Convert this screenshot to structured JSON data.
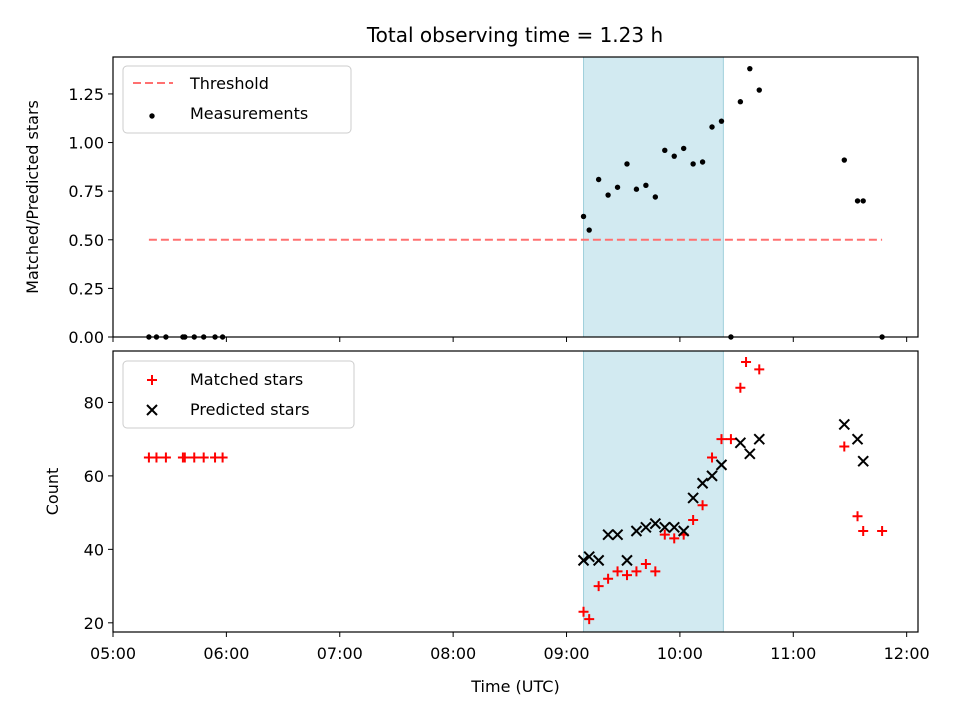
{
  "chart_data": [
    {
      "type": "scatter",
      "title": "Total observing time = 1.23 h",
      "ylabel": "Matched/Predicted stars",
      "ylim": [
        0,
        1.44
      ],
      "yticks": [
        "0.00",
        "0.25",
        "0.50",
        "0.75",
        "1.00",
        "1.25"
      ],
      "highlight_span": [
        "09:09",
        "10:23"
      ],
      "colors": {
        "threshold": "#ff7070",
        "measurements": "#000000",
        "span": "#add8e6"
      },
      "threshold": {
        "name": "Threshold",
        "value": 0.5,
        "x_range": [
          "05:19",
          "11:47"
        ]
      },
      "series": [
        {
          "name": "Measurements",
          "points": [
            [
              "05:19",
              0.0
            ],
            [
              "05:23",
              0.0
            ],
            [
              "05:28",
              0.0
            ],
            [
              "05:37",
              0.0
            ],
            [
              "05:38",
              0.0
            ],
            [
              "05:43",
              0.0
            ],
            [
              "05:48",
              0.0
            ],
            [
              "05:54",
              0.0
            ],
            [
              "05:58",
              0.0
            ],
            [
              "09:09",
              0.62
            ],
            [
              "09:12",
              0.55
            ],
            [
              "09:17",
              0.81
            ],
            [
              "09:22",
              0.73
            ],
            [
              "09:27",
              0.77
            ],
            [
              "09:32",
              0.89
            ],
            [
              "09:37",
              0.76
            ],
            [
              "09:42",
              0.78
            ],
            [
              "09:47",
              0.72
            ],
            [
              "09:52",
              0.96
            ],
            [
              "09:57",
              0.93
            ],
            [
              "10:02",
              0.97
            ],
            [
              "10:07",
              0.89
            ],
            [
              "10:12",
              0.9
            ],
            [
              "10:17",
              1.08
            ],
            [
              "10:22",
              1.11
            ],
            [
              "10:27",
              0.0
            ],
            [
              "10:32",
              1.21
            ],
            [
              "10:37",
              1.38
            ],
            [
              "10:42",
              1.27
            ],
            [
              "11:27",
              0.91
            ],
            [
              "11:34",
              0.7
            ],
            [
              "11:37",
              0.7
            ],
            [
              "11:47",
              0.0
            ]
          ]
        }
      ]
    },
    {
      "type": "scatter",
      "xlabel": "Time (UTC)",
      "ylabel": "Count",
      "ylim": [
        17.5,
        94
      ],
      "xlim": [
        "05:00",
        "12:06"
      ],
      "xticks": [
        "05:00",
        "06:00",
        "07:00",
        "08:00",
        "09:00",
        "10:00",
        "11:00",
        "12:00"
      ],
      "yticks": [
        "20",
        "40",
        "60",
        "80"
      ],
      "highlight_span": [
        "09:09",
        "10:23"
      ],
      "colors": {
        "matched": "#ff0000",
        "predicted": "#000000",
        "span": "#add8e6"
      },
      "series": [
        {
          "name": "Matched stars",
          "points": [
            [
              "05:19",
              65
            ],
            [
              "05:23",
              65
            ],
            [
              "05:28",
              65
            ],
            [
              "05:37",
              65
            ],
            [
              "05:38",
              65
            ],
            [
              "05:43",
              65
            ],
            [
              "05:48",
              65
            ],
            [
              "05:54",
              65
            ],
            [
              "05:58",
              65
            ],
            [
              "09:09",
              23
            ],
            [
              "09:12",
              21
            ],
            [
              "09:17",
              30
            ],
            [
              "09:22",
              32
            ],
            [
              "09:27",
              34
            ],
            [
              "09:32",
              33
            ],
            [
              "09:37",
              34
            ],
            [
              "09:42",
              36
            ],
            [
              "09:47",
              34
            ],
            [
              "09:52",
              44
            ],
            [
              "09:57",
              43
            ],
            [
              "10:02",
              44
            ],
            [
              "10:07",
              48
            ],
            [
              "10:12",
              52
            ],
            [
              "10:17",
              65
            ],
            [
              "10:22",
              70
            ],
            [
              "10:27",
              70
            ],
            [
              "10:32",
              84
            ],
            [
              "10:35",
              91
            ],
            [
              "10:42",
              89
            ],
            [
              "11:27",
              68
            ],
            [
              "11:34",
              49
            ],
            [
              "11:37",
              45
            ],
            [
              "11:47",
              45
            ]
          ]
        },
        {
          "name": "Predicted stars",
          "points": [
            [
              "09:09",
              37
            ],
            [
              "09:12",
              38
            ],
            [
              "09:17",
              37
            ],
            [
              "09:22",
              44
            ],
            [
              "09:27",
              44
            ],
            [
              "09:32",
              37
            ],
            [
              "09:37",
              45
            ],
            [
              "09:42",
              46
            ],
            [
              "09:47",
              47
            ],
            [
              "09:52",
              46
            ],
            [
              "09:57",
              46
            ],
            [
              "10:02",
              45
            ],
            [
              "10:07",
              54
            ],
            [
              "10:12",
              58
            ],
            [
              "10:17",
              60
            ],
            [
              "10:22",
              63
            ],
            [
              "10:32",
              69
            ],
            [
              "10:37",
              66
            ],
            [
              "10:42",
              70
            ],
            [
              "11:27",
              74
            ],
            [
              "11:34",
              70
            ],
            [
              "11:37",
              64
            ]
          ]
        }
      ]
    }
  ]
}
